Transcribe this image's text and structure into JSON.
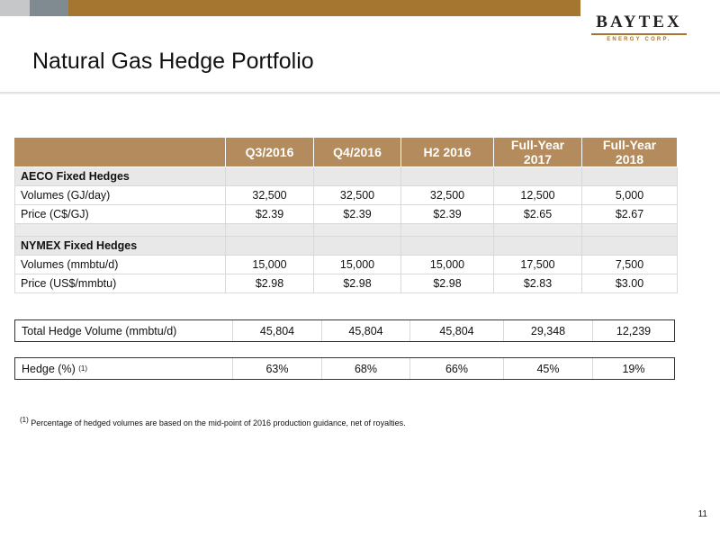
{
  "logo": {
    "word": "BAYTEX",
    "sub": "ENERGY CORP."
  },
  "title": "Natural Gas Hedge Portfolio",
  "table": {
    "columns": [
      "Q3/2016",
      "Q4/2016",
      "H2 2016",
      "Full-Year 2017",
      "Full-Year 2018"
    ],
    "aeco": {
      "heading": "AECO Fixed Hedges",
      "volume": {
        "label": "Volumes (GJ/day)",
        "values": [
          "32,500",
          "32,500",
          "32,500",
          "12,500",
          "5,000"
        ]
      },
      "price": {
        "label": "Price (C$/GJ)",
        "values": [
          "$2.39",
          "$2.39",
          "$2.39",
          "$2.65",
          "$2.67"
        ]
      }
    },
    "nymex": {
      "heading": "NYMEX Fixed Hedges",
      "volume": {
        "label": "Volumes (mmbtu/d)",
        "values": [
          "15,000",
          "15,000",
          "15,000",
          "17,500",
          "7,500"
        ]
      },
      "price": {
        "label": "Price (US$/mmbtu)",
        "values": [
          "$2.98",
          "$2.98",
          "$2.98",
          "$2.83",
          "$3.00"
        ]
      }
    }
  },
  "total": {
    "label": "Total Hedge Volume (mmbtu/d)",
    "values": [
      "45,804",
      "45,804",
      "45,804",
      "29,348",
      "12,239"
    ]
  },
  "hedge": {
    "label": "Hedge (%)",
    "sup": "(1)",
    "values": [
      "63%",
      "68%",
      "66%",
      "45%",
      "19%"
    ]
  },
  "footnote": {
    "marker": "(1)",
    "text": "Percentage of hedged volumes are based on the mid-point of 2016 production guidance, net of royalties."
  },
  "page_number": "11",
  "colors": {
    "header_bg": "#b38b5d",
    "accent": "#a5762f"
  }
}
